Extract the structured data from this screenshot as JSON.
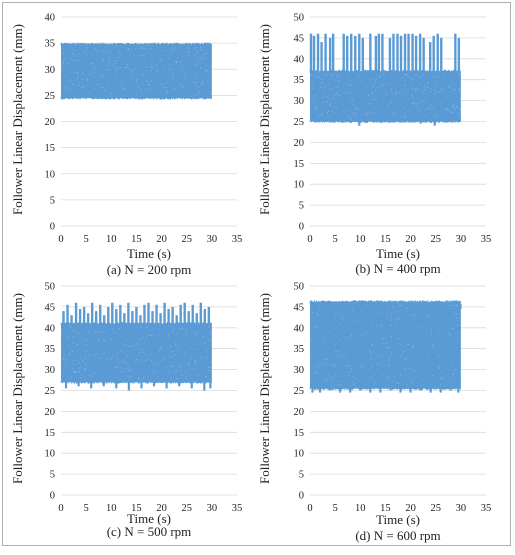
{
  "chart_data": [
    {
      "type": "scatter",
      "caption": "(a) N = 200 rpm",
      "xlabel": "Time (s)",
      "ylabel": "Follower Linear Displacement (mm)",
      "xlim": [
        0,
        35
      ],
      "ylim": [
        0,
        40
      ],
      "xticks": [
        0,
        5,
        10,
        15,
        20,
        25,
        30,
        35
      ],
      "yticks": [
        0,
        5,
        10,
        15,
        20,
        25,
        30,
        35,
        40
      ],
      "series": [
        {
          "x_range": [
            0,
            30
          ],
          "y_min": 24.5,
          "y_max": 34.8,
          "upper_spikes": [],
          "lower_spikes": []
        }
      ]
    },
    {
      "type": "scatter",
      "caption": "(b) N = 400 rpm",
      "xlabel": "Time (s)",
      "ylabel": "Follower Linear Displacement (mm)",
      "xlim": [
        0,
        35
      ],
      "ylim": [
        0,
        50
      ],
      "xticks": [
        0,
        5,
        10,
        15,
        20,
        25,
        30,
        35
      ],
      "yticks": [
        0,
        5,
        10,
        15,
        20,
        25,
        30,
        35,
        40,
        45,
        50
      ],
      "series": [
        {
          "x_range": [
            0,
            30
          ],
          "y_min": 25,
          "y_max": 37,
          "upper_spikes": [
            [
              0.2,
              46
            ],
            [
              0.8,
              45.5
            ],
            [
              1.6,
              46
            ],
            [
              2.3,
              44
            ],
            [
              3.1,
              46
            ],
            [
              4.0,
              45
            ],
            [
              4.6,
              46
            ],
            [
              6.7,
              46
            ],
            [
              7.4,
              45.5
            ],
            [
              8.2,
              46
            ],
            [
              9.0,
              45.5
            ],
            [
              9.8,
              46
            ],
            [
              10.5,
              45
            ],
            [
              12.0,
              46
            ],
            [
              13.1,
              45.5
            ],
            [
              13.7,
              46
            ],
            [
              14.4,
              46
            ],
            [
              15.9,
              45
            ],
            [
              16.6,
              46
            ],
            [
              17.4,
              46
            ],
            [
              18.1,
              45.5
            ],
            [
              18.9,
              46
            ],
            [
              19.6,
              46
            ],
            [
              20.4,
              46
            ],
            [
              21.1,
              45.5
            ],
            [
              21.9,
              46
            ],
            [
              22.6,
              45
            ],
            [
              23.9,
              44
            ],
            [
              24.6,
              45.5
            ],
            [
              25.4,
              46
            ],
            [
              26.1,
              45
            ],
            [
              28.9,
              46
            ],
            [
              29.6,
              45
            ]
          ],
          "lower_spikes": [
            [
              9.8,
              24
            ],
            [
              24.8,
              24
            ],
            [
              22.0,
              24.5
            ]
          ]
        }
      ]
    },
    {
      "type": "scatter",
      "caption": "(c) N = 500 rpm",
      "xlabel": "Time (s)",
      "ylabel": "Follower Linear Displacement (mm)",
      "xlim": [
        0,
        35
      ],
      "ylim": [
        0,
        50
      ],
      "xticks": [
        0,
        5,
        10,
        15,
        20,
        25,
        30,
        35
      ],
      "yticks": [
        0,
        5,
        10,
        15,
        20,
        25,
        30,
        35,
        40,
        45,
        50
      ],
      "series": [
        {
          "x_range": [
            0,
            30
          ],
          "y_min": 27,
          "y_max": 41,
          "upper_spikes": [
            [
              0.5,
              44
            ],
            [
              1.3,
              45.5
            ],
            [
              2.1,
              43
            ],
            [
              3.0,
              46
            ],
            [
              3.8,
              44.5
            ],
            [
              4.6,
              45
            ],
            [
              5.4,
              43.5
            ],
            [
              6.2,
              46
            ],
            [
              7.0,
              44
            ],
            [
              7.8,
              45.5
            ],
            [
              8.6,
              43
            ],
            [
              9.4,
              45
            ],
            [
              10.2,
              46
            ],
            [
              11.0,
              44.5
            ],
            [
              11.8,
              45.5
            ],
            [
              12.6,
              43.5
            ],
            [
              13.4,
              46
            ],
            [
              14.2,
              44
            ],
            [
              15.0,
              45
            ],
            [
              15.8,
              43
            ],
            [
              16.6,
              45.5
            ],
            [
              17.4,
              46
            ],
            [
              18.2,
              44
            ],
            [
              19.0,
              45.5
            ],
            [
              19.8,
              43.5
            ],
            [
              20.6,
              46
            ],
            [
              21.4,
              44.5
            ],
            [
              22.2,
              45
            ],
            [
              23.0,
              43
            ],
            [
              23.8,
              45.5
            ],
            [
              24.6,
              46
            ],
            [
              25.4,
              44
            ],
            [
              26.2,
              45.5
            ],
            [
              27.0,
              43.5
            ],
            [
              27.8,
              46
            ],
            [
              28.6,
              44.5
            ],
            [
              29.4,
              45
            ]
          ],
          "lower_spikes": [
            [
              1.0,
              25.5
            ],
            [
              3.5,
              26
            ],
            [
              6.0,
              25.5
            ],
            [
              8.5,
              26
            ],
            [
              11.0,
              25.5
            ],
            [
              13.5,
              25
            ],
            [
              16.0,
              25.5
            ],
            [
              18.5,
              26
            ],
            [
              21.0,
              25.5
            ],
            [
              23.5,
              26
            ],
            [
              26.0,
              25.5
            ],
            [
              28.5,
              25
            ],
            [
              29.7,
              25.5
            ]
          ]
        }
      ]
    },
    {
      "type": "scatter",
      "caption": "(d) N = 600 rpm",
      "xlabel": "Time (s)",
      "ylabel": "Follower Linear Displacement (mm)",
      "xlim": [
        0,
        35
      ],
      "ylim": [
        0,
        50
      ],
      "xticks": [
        0,
        5,
        10,
        15,
        20,
        25,
        30,
        35
      ],
      "yticks": [
        0,
        5,
        10,
        15,
        20,
        25,
        30,
        35,
        40,
        45,
        50
      ],
      "series": [
        {
          "x_range": [
            0,
            30
          ],
          "y_min": 25.5,
          "y_max": 46.2,
          "upper_spikes": [
            [
              29.9,
              44.5
            ]
          ],
          "lower_spikes": [
            [
              0.5,
              24.5
            ],
            [
              2.0,
              24.5
            ],
            [
              4.0,
              25
            ],
            [
              6.0,
              24.5
            ],
            [
              8.0,
              24.5
            ],
            [
              10.0,
              25
            ],
            [
              12.0,
              24.5
            ],
            [
              14.0,
              24.5
            ],
            [
              16.0,
              25
            ],
            [
              18.0,
              24.5
            ],
            [
              20.0,
              24.5
            ],
            [
              22.0,
              25
            ],
            [
              24.0,
              24.5
            ],
            [
              26.0,
              24.5
            ],
            [
              28.0,
              25
            ],
            [
              29.5,
              24.5
            ]
          ]
        }
      ]
    }
  ],
  "colors": {
    "series": "#5b9bd5",
    "grid": "#d9d9d9",
    "frame": "#b0b0b0",
    "text": "#222222"
  }
}
